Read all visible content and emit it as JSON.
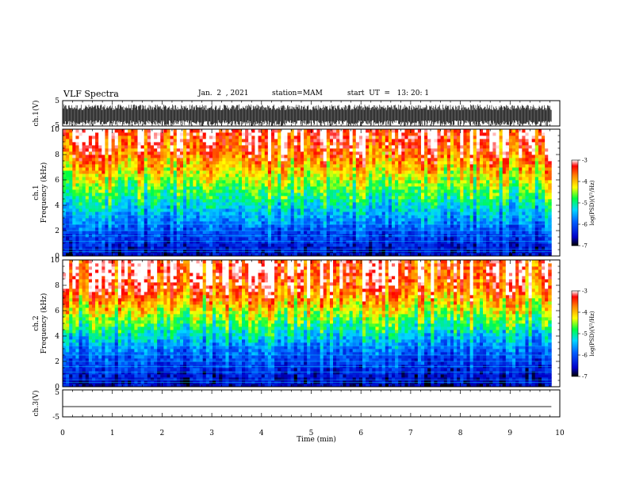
{
  "header": {
    "title": "VLF Spectra",
    "date": "Jan.  2  , 2021",
    "station": "station=MAM",
    "start": "start  UT  =   13: 20: 1"
  },
  "colors": {
    "trace": "#000000",
    "bg": "#ffffff"
  },
  "chart_data": [
    {
      "type": "line",
      "title": "",
      "ylabel": "ch.1(V)",
      "ylim": [
        -5,
        5
      ],
      "y_ticks": [
        "5",
        "-5"
      ],
      "xlim": [
        0,
        10
      ],
      "description_signal": "dense waveform, values spanning roughly -5 to 3.5 V",
      "approx_range": [
        -5,
        3.5
      ]
    },
    {
      "type": "heatmap",
      "ylabel_line1": "ch.1",
      "ylabel_line2": "Frequency  (kHz)",
      "xlim": [
        0,
        9.83
      ],
      "ylim": [
        0,
        10
      ],
      "y_ticks": [
        "0",
        "2",
        "4",
        "6",
        "8",
        "10"
      ],
      "colorbar": {
        "label": "log(PSD)(V²/Hz)",
        "range": [
          -7,
          -3
        ],
        "ticks": [
          "-3",
          "-4",
          "-5",
          "-6",
          "-7"
        ]
      },
      "band_profile": [
        [
          0,
          -6.6
        ],
        [
          1,
          -6.3
        ],
        [
          2,
          -6.0
        ],
        [
          3,
          -5.6
        ],
        [
          4,
          -5.2
        ],
        [
          5,
          -4.8
        ],
        [
          6,
          -4.4
        ],
        [
          7,
          -4.0
        ],
        [
          8,
          -3.6
        ],
        [
          9,
          -3.3
        ],
        [
          10,
          -3.1
        ]
      ]
    },
    {
      "type": "heatmap",
      "ylabel_line1": "ch.2",
      "ylabel_line2": "Frequency  (kHz)",
      "xlim": [
        0,
        9.83
      ],
      "ylim": [
        0,
        10
      ],
      "y_ticks": [
        "0",
        "2",
        "4",
        "6",
        "8",
        "10"
      ],
      "colorbar": {
        "label": "log(PSD)(V²/Hz)",
        "range": [
          -7,
          -3
        ],
        "ticks": [
          "-3",
          "-4",
          "-5",
          "-6",
          "-7"
        ]
      },
      "band_profile": [
        [
          0,
          -6.6
        ],
        [
          1,
          -6.4
        ],
        [
          2,
          -6.1
        ],
        [
          3,
          -5.8
        ],
        [
          4,
          -5.3
        ],
        [
          5,
          -4.8
        ],
        [
          6,
          -4.3
        ],
        [
          7,
          -3.8
        ],
        [
          8,
          -3.4
        ],
        [
          9,
          -3.2
        ],
        [
          10,
          -3.1
        ]
      ]
    },
    {
      "type": "line",
      "ylabel": "ch.3(V)",
      "ylim": [
        -5,
        5
      ],
      "y_ticks": [
        "5",
        "-5"
      ],
      "xlim": [
        0,
        9.83
      ],
      "constant_value": -1.2
    }
  ],
  "xaxis": {
    "label": "Time  (min)",
    "ticks": [
      "0",
      "1",
      "2",
      "3",
      "4",
      "5",
      "6",
      "7",
      "8",
      "9",
      "10"
    ],
    "range": [
      0,
      10
    ]
  }
}
